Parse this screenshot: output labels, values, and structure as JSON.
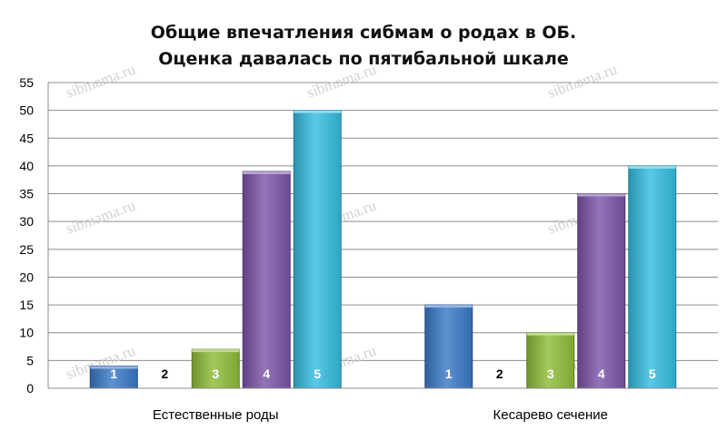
{
  "chart_data": {
    "type": "bar",
    "title_lines": [
      "Общие впечатления сибмам о родах в ОБ.",
      "Оценка давалась по пятибальной шкале"
    ],
    "categories": [
      "Естественные роды",
      "Кесарево сечение"
    ],
    "series": [
      {
        "name": "1",
        "color": "#3a7ac8",
        "values": [
          4,
          15
        ]
      },
      {
        "name": "2",
        "color": "#c0504d",
        "values": [
          0,
          0
        ]
      },
      {
        "name": "3",
        "color": "#8fbd3a",
        "values": [
          7,
          10
        ]
      },
      {
        "name": "4",
        "color": "#7b55a8",
        "values": [
          39,
          35
        ]
      },
      {
        "name": "5",
        "color": "#35bde0",
        "values": [
          50,
          40
        ]
      }
    ],
    "ylim": [
      0,
      55
    ],
    "yticks": [
      0,
      5,
      10,
      15,
      20,
      25,
      30,
      35,
      40,
      45,
      50,
      55
    ],
    "grid": true,
    "legend": "none",
    "watermark": "sibmama.ru"
  }
}
